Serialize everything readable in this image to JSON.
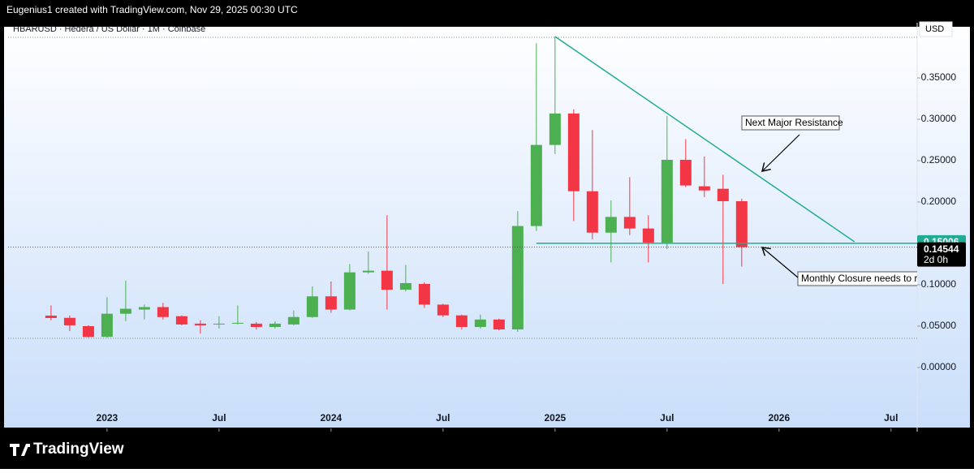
{
  "header": {
    "credit": "Eugenius1 created with TradingView.com, Nov 29, 2025 00:30 UTC",
    "symbol": "HBARUSD · Hedera / US Dollar · 1M · Coinbase",
    "currency": "USD"
  },
  "footer": {
    "brand": "TradingView"
  },
  "chart_data": {
    "type": "candlestick",
    "up_color": "#4caf50",
    "down_color": "#f23645",
    "open": [
      0.0627,
      0.06,
      0.05,
      0.037,
      0.065,
      0.07,
      0.073,
      0.062,
      0.053,
      0.052,
      0.053,
      0.053,
      0.049,
      0.052,
      0.061,
      0.086,
      0.07,
      0.115,
      0.117,
      0.094,
      0.101,
      0.076,
      0.063,
      0.049,
      0.058,
      0.046,
      0.171,
      0.269,
      0.307,
      0.213,
      0.163,
      0.182,
      0.168,
      0.151,
      0.251,
      0.219,
      0.216,
      0.201
    ],
    "high": [
      0.075,
      0.063,
      0.051,
      0.085,
      0.105,
      0.076,
      0.078,
      0.063,
      0.057,
      0.062,
      0.075,
      0.055,
      0.056,
      0.069,
      0.098,
      0.104,
      0.125,
      0.14,
      0.184,
      0.124,
      0.103,
      0.077,
      0.064,
      0.064,
      0.059,
      0.189,
      0.392,
      0.4,
      0.312,
      0.287,
      0.202,
      0.23,
      0.184,
      0.304,
      0.276,
      0.255,
      0.233,
      0.204
    ],
    "low": [
      0.057,
      0.044,
      0.036,
      0.036,
      0.056,
      0.058,
      0.058,
      0.051,
      0.041,
      0.047,
      0.052,
      0.046,
      0.047,
      0.051,
      0.06,
      0.066,
      0.069,
      0.113,
      0.07,
      0.092,
      0.072,
      0.061,
      0.046,
      0.047,
      0.045,
      0.043,
      0.165,
      0.258,
      0.177,
      0.155,
      0.127,
      0.16,
      0.127,
      0.143,
      0.218,
      0.206,
      0.101,
      0.122
    ],
    "close": [
      0.0598,
      0.051,
      0.037,
      0.065,
      0.071,
      0.073,
      0.061,
      0.052,
      0.051,
      0.053,
      0.054,
      0.049,
      0.053,
      0.061,
      0.086,
      0.07,
      0.115,
      0.117,
      0.094,
      0.102,
      0.076,
      0.063,
      0.049,
      0.058,
      0.046,
      0.171,
      0.269,
      0.307,
      0.213,
      0.163,
      0.182,
      0.168,
      0.151,
      0.251,
      0.22,
      0.214,
      0.201,
      0.14544
    ],
    "xlim": [
      -2.3,
      46.4
    ],
    "xticks": [
      {
        "value": 3,
        "label": "2023"
      },
      {
        "value": 9,
        "label": "Jul"
      },
      {
        "value": 15,
        "label": "2024"
      },
      {
        "value": 21,
        "label": "Jul"
      },
      {
        "value": 27,
        "label": "2025"
      },
      {
        "value": 33,
        "label": "Jul"
      },
      {
        "value": 39,
        "label": "2026"
      },
      {
        "value": 45,
        "label": "Jul"
      }
    ],
    "ylim": [
      -0.0775,
      0.4167
    ],
    "yticks": [
      {
        "value": 0,
        "label": "0.00000"
      },
      {
        "value": 0.05,
        "label": "0.05000"
      },
      {
        "value": 0.1,
        "label": "0.10000"
      },
      {
        "value": 0.15,
        "label": "0.15000"
      },
      {
        "value": 0.2,
        "label": "0.20000"
      },
      {
        "value": 0.25,
        "label": "0.25000"
      },
      {
        "value": 0.3,
        "label": "0.30000"
      },
      {
        "value": 0.35,
        "label": "0.35000"
      }
    ],
    "trendline": {
      "x": [
        27,
        43.04
      ],
      "y": [
        0.4,
        0.152
      ],
      "color": "#22ab94"
    },
    "price_lines": [
      {
        "value": 0.15006,
        "color": "#22ab94"
      },
      {
        "value": 0.14544,
        "color": "#000000",
        "countdown": "2d 0h"
      }
    ],
    "annotations": [
      "Next Major Resistance",
      "Monthly Closure needs to re"
    ]
  }
}
